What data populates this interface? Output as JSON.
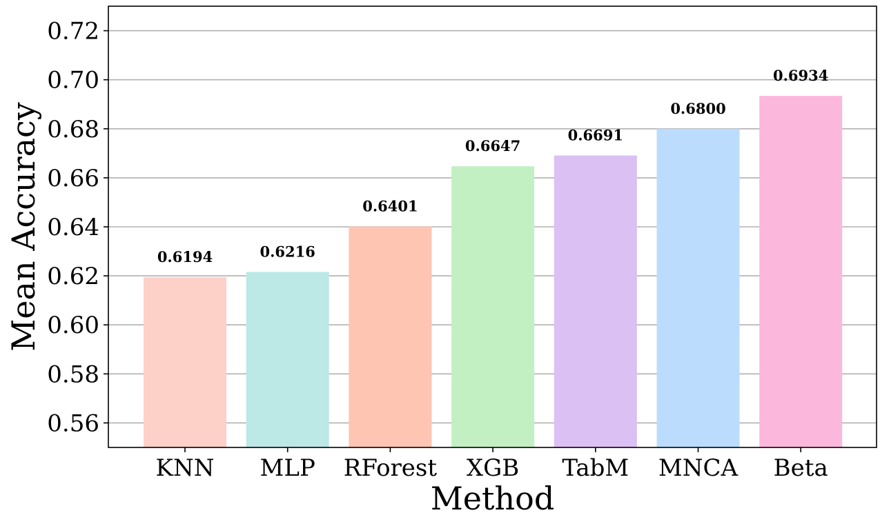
{
  "chart_data": {
    "type": "bar",
    "title": "",
    "xlabel": "Method",
    "ylabel": "Mean Accuracy",
    "categories": [
      "KNN",
      "MLP",
      "RForest",
      "XGB",
      "TabM",
      "MNCA",
      "Beta"
    ],
    "values": [
      0.6194,
      0.6216,
      0.6401,
      0.6647,
      0.6691,
      0.68,
      0.6934
    ],
    "value_labels": [
      "0.6194",
      "0.6216",
      "0.6401",
      "0.6647",
      "0.6691",
      "0.6800",
      "0.6934"
    ],
    "bar_colors": [
      "#fdd0c8",
      "#bce8e6",
      "#fdc5b2",
      "#c2f0c2",
      "#dbc0f4",
      "#bbdcfc",
      "#fcb8dc"
    ],
    "ylim": [
      0.55,
      0.73
    ],
    "yticks": [
      0.56,
      0.58,
      0.6,
      0.62,
      0.64,
      0.66,
      0.68,
      0.7,
      0.72
    ],
    "ytick_labels": [
      "0.56",
      "0.58",
      "0.60",
      "0.62",
      "0.64",
      "0.66",
      "0.68",
      "0.70",
      "0.72"
    ],
    "grid": "horizontal",
    "legend": "none"
  }
}
